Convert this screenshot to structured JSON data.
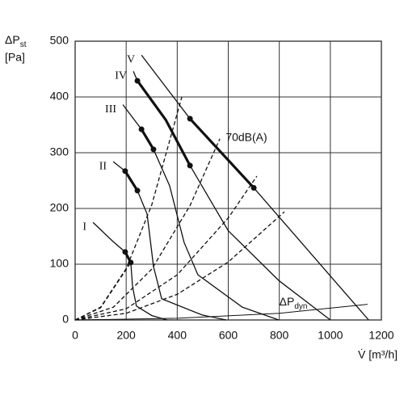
{
  "chart_data": {
    "type": "line",
    "ylabel": {
      "text": "ΔP",
      "sub": "st",
      "unit": "[Pa]"
    },
    "xlabel": "V̇ [m³/h]",
    "xlim": [
      0,
      1200
    ],
    "xticks": [
      0,
      200,
      400,
      600,
      800,
      1000,
      1200
    ],
    "ylim": [
      0,
      500
    ],
    "yticks": [
      0,
      100,
      200,
      300,
      400,
      500
    ],
    "grid": true,
    "color": "#111",
    "series": [
      {
        "name": "I",
        "x": [
          70,
          150,
          196,
          218,
          225,
          240,
          300,
          360
        ],
        "values": [
          175,
          140,
          122,
          103,
          60,
          25,
          8,
          0
        ]
      },
      {
        "name": "II",
        "x": [
          149,
          196,
          244,
          282,
          307,
          339,
          497,
          592
        ],
        "values": [
          284,
          267,
          232,
          190,
          96,
          38,
          9,
          0
        ]
      },
      {
        "name": "III",
        "x": [
          187,
          260,
          307,
          370,
          427,
          481,
          655,
          798
        ],
        "values": [
          386,
          342,
          306,
          241,
          139,
          81,
          23,
          0
        ]
      },
      {
        "name": "IV",
        "x": [
          228,
          244,
          355,
          450,
          600,
          800,
          1000
        ],
        "values": [
          446,
          429,
          359,
          277,
          160,
          70,
          0
        ]
      },
      {
        "name": "V",
        "x": [
          260,
          450,
          700,
          1150
        ],
        "values": [
          475,
          361,
          237,
          0
        ]
      },
      {
        "style": "bold",
        "x": [
          196,
          218
        ],
        "values": [
          122,
          103
        ]
      },
      {
        "style": "bold",
        "x": [
          196,
          244
        ],
        "values": [
          267,
          232
        ]
      },
      {
        "style": "bold",
        "x": [
          260,
          307
        ],
        "values": [
          342,
          306
        ]
      },
      {
        "style": "bold",
        "x": [
          244,
          355,
          450
        ],
        "values": [
          429,
          359,
          277
        ]
      },
      {
        "style": "bold",
        "x": [
          450,
          700
        ],
        "values": [
          361,
          237
        ]
      },
      {
        "style": "dashed",
        "x": [
          0,
          100,
          218
        ],
        "values": [
          0,
          22,
          103
        ]
      },
      {
        "style": "dashed",
        "x": [
          0,
          100,
          200,
          300,
          418
        ],
        "values": [
          0,
          23,
          92,
          206,
          400
        ]
      },
      {
        "style": "dashed",
        "x": [
          0,
          150,
          300,
          450,
          567
        ],
        "values": [
          0,
          23,
          91,
          205,
          325
        ]
      },
      {
        "style": "dashed",
        "x": [
          0,
          200,
          400,
          600,
          712
        ],
        "values": [
          0,
          20,
          81,
          183,
          258
        ]
      },
      {
        "style": "dashed",
        "x": [
          0,
          200,
          400,
          600,
          820
        ],
        "values": [
          0,
          12,
          46,
          104,
          194
        ]
      },
      {
        "style": "thin",
        "x": [
          0,
          400,
          800,
          1146
        ],
        "values": [
          0,
          3,
          12,
          28
        ]
      }
    ],
    "annotations": [
      {
        "text": "70dB(A)",
        "x": 590,
        "y": 315
      },
      {
        "text": "ΔP",
        "sub": "dyn",
        "x": 800,
        "y": 20
      }
    ]
  }
}
